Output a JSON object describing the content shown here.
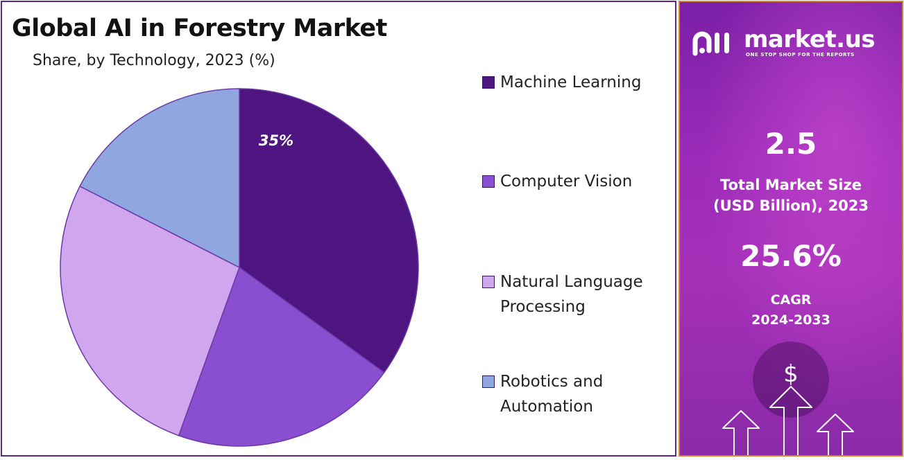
{
  "chart_data": {
    "type": "pie",
    "title": "Global AI in Forestry Market",
    "subtitle": "Share, by Technology, 2023 (%)",
    "categories": [
      "Machine Learning",
      "Computer Vision",
      "Natural Language Processing",
      "Robotics and Automation"
    ],
    "values": [
      35,
      20.5,
      27,
      17.5
    ],
    "colors": [
      "#4e1580",
      "#8a4fd0",
      "#d0a6ee",
      "#8fa6de"
    ],
    "data_labels": [
      "35%",
      null,
      null,
      null
    ],
    "legend_placement": "right"
  },
  "legend": {
    "items": [
      {
        "label": "Machine Learning",
        "color": "#4e1580"
      },
      {
        "label": "Computer Vision",
        "color": "#8a4fd0"
      },
      {
        "label": "Natural Language Processing",
        "color": "#d0a6ee"
      },
      {
        "label": "Robotics and Automation",
        "color": "#8fa6de"
      }
    ]
  },
  "sidebar": {
    "brand": "market.us",
    "tagline": "ONE STOP SHOP FOR THE REPORTS",
    "market_size_value": "2.5",
    "market_size_label_1": "Total Market Size",
    "market_size_label_2": "(USD Billion), 2023",
    "cagr_value": "25.6%",
    "cagr_label_1": "CAGR",
    "cagr_label_2": "2024-2033",
    "deco_icon": "dollar-growth-arrows-icon",
    "colors": {
      "gradient_top": "#7a1fa6",
      "gradient_bottom": "#a530b8",
      "border": "#d9822b"
    }
  }
}
